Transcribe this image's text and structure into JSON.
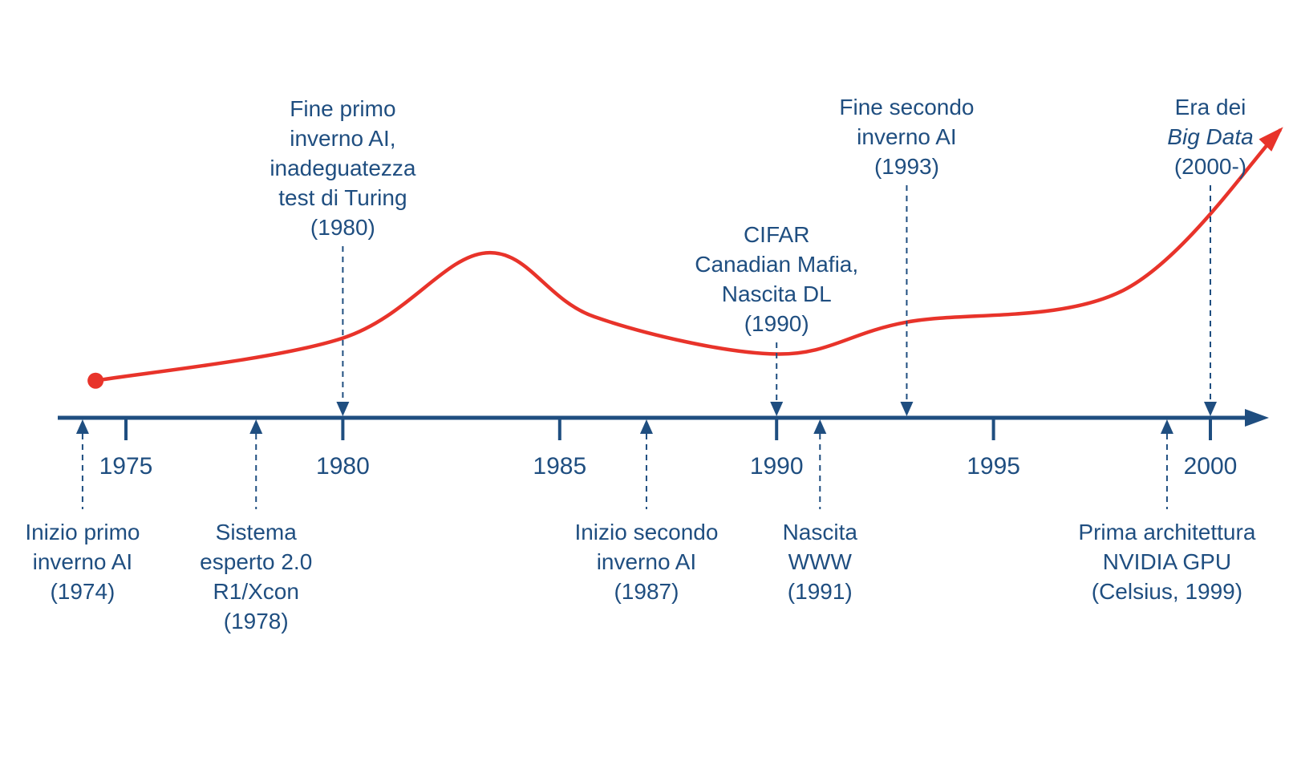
{
  "colors": {
    "axis": "#1f4e80",
    "curve": "#e8332a",
    "text": "#1f4e80",
    "background": "#ffffff"
  },
  "axis": {
    "ticks": [
      "1975",
      "1980",
      "1985",
      "1990",
      "1995",
      "2000"
    ]
  },
  "curve": {
    "description_values": "trend of AI interest over time",
    "points": [
      {
        "year": 1974.3,
        "level": 0.04
      },
      {
        "year": 1980.0,
        "level": 0.2
      },
      {
        "year": 1983.3,
        "level": 0.52
      },
      {
        "year": 1985.8,
        "level": 0.28
      },
      {
        "year": 1990.0,
        "level": 0.14
      },
      {
        "year": 1993.0,
        "level": 0.26
      },
      {
        "year": 1998.0,
        "level": 0.38
      },
      {
        "year": 2001.6,
        "level": 0.98
      }
    ]
  },
  "events_above": [
    {
      "year": 1980,
      "lines": [
        "Fine primo",
        "inverno AI,",
        "inadeguatezza",
        "test di Turing",
        "(1980)"
      ]
    },
    {
      "year": 1990,
      "lines": [
        "CIFAR",
        "Canadian Mafia,",
        "Nascita DL",
        "(1990)"
      ]
    },
    {
      "year": 1993,
      "lines": [
        "Fine secondo",
        "inverno AI",
        "(1993)"
      ]
    },
    {
      "year": 2000,
      "lines": [
        "Era dei",
        "Big Data",
        "(2000-)"
      ],
      "italic_line": 1
    }
  ],
  "events_below": [
    {
      "year": 1974,
      "lines": [
        "Inizio primo",
        "inverno AI",
        "(1974)"
      ]
    },
    {
      "year": 1978,
      "lines": [
        "Sistema",
        "esperto 2.0",
        "R1/Xcon",
        "(1978)"
      ]
    },
    {
      "year": 1987,
      "lines": [
        "Inizio secondo",
        "inverno AI",
        "(1987)"
      ]
    },
    {
      "year": 1991,
      "lines": [
        "Nascita",
        "WWW",
        "(1991)"
      ]
    },
    {
      "year": 1999,
      "lines": [
        "Prima architettura",
        "NVIDIA GPU",
        "(Celsius, 1999)"
      ]
    }
  ]
}
